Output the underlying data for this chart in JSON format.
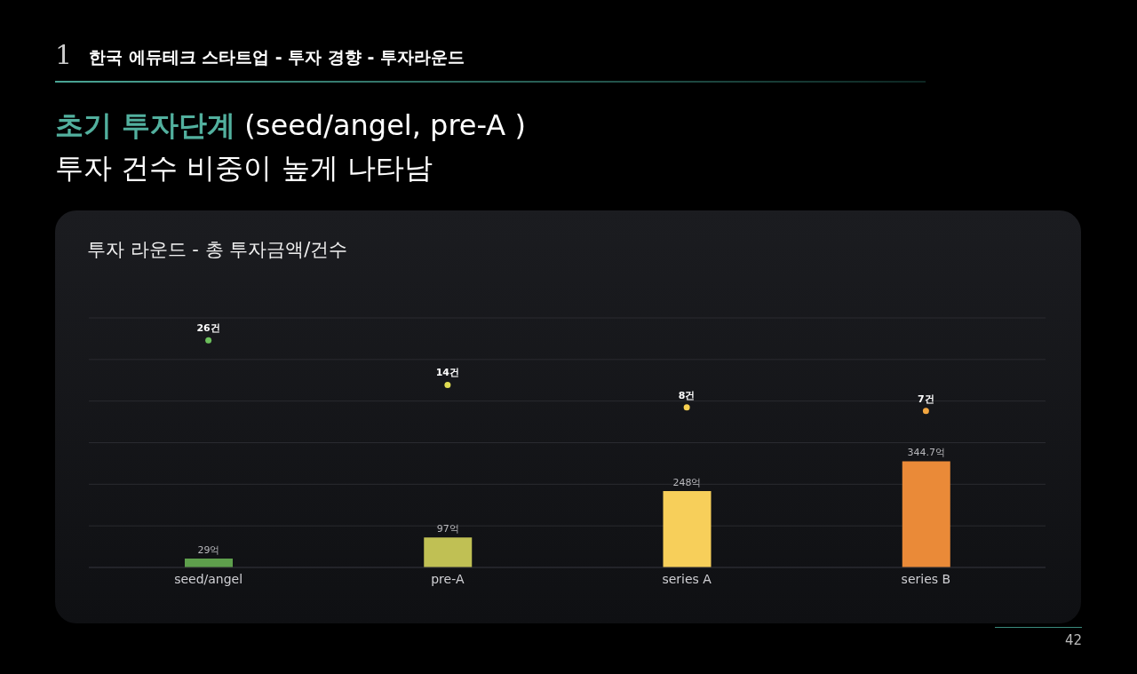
{
  "chart_data": {
    "type": "bar",
    "title": "투자 라운드 - 총 투자금액/건수",
    "annotations": [
      "1",
      "한국 에듀테크 스타트업 - 투자 경향 - 투자라운드",
      "초기 투자단계",
      "(seed/angel, pre-A )",
      "투자 건수 비중이 높게 나타남",
      "42"
    ],
    "categories": [
      "seed/angel",
      "pre-A",
      "series A",
      "series B"
    ],
    "series": [
      {
        "colors": [
          "#5e9f4c",
          "#c0c054",
          "#f7cf5a",
          "#ea8a38"
        ],
        "values": [
          29,
          97,
          248,
          344.7
        ],
        "value_labels": [
          "29억",
          "97억",
          "248억",
          "344.7억"
        ]
      },
      {
        "type": "scatter",
        "axis": "y2",
        "colors": [
          "#6cbf5c",
          "#e0dc52",
          "#f7d050",
          "#f2a640"
        ],
        "values": [
          26,
          14,
          8,
          7
        ],
        "value_labels": [
          "26건",
          "14건",
          "8건",
          "7건"
        ]
      }
    ],
    "ylim": [
      0,
      810
    ],
    "yticks": [
      {
        "value": 0,
        "label": null
      },
      {
        "value": 135,
        "label": null
      },
      {
        "value": 270,
        "label": null
      },
      {
        "value": 405,
        "label": null
      },
      {
        "value": 540,
        "label": null
      },
      {
        "value": 675,
        "label": null
      },
      {
        "value": 810,
        "label": null
      }
    ],
    "y2lim": [
      -35,
      32
    ],
    "tick_labels": "x",
    "grid": "y",
    "legend": false,
    "marker": "circle"
  }
}
